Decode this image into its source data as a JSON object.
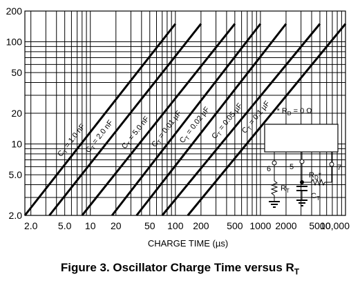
{
  "chart_data": {
    "type": "line",
    "x_scale": "log",
    "y_scale": "log",
    "xlim": [
      1.7,
      10000
    ],
    "ylim": [
      2.0,
      200
    ],
    "x_ticks": [
      "2.0",
      "5.0",
      "10",
      "20",
      "50",
      "100",
      "200",
      "500",
      "1000",
      "2000",
      "5000",
      "10,000"
    ],
    "x_tick_values": [
      2,
      5,
      10,
      20,
      50,
      100,
      200,
      500,
      1000,
      2000,
      5000,
      10000
    ],
    "y_ticks": [
      "2.0",
      "5.0",
      "10",
      "20",
      "50",
      "100",
      "200"
    ],
    "y_tick_values": [
      2,
      5,
      10,
      20,
      50,
      100,
      200
    ],
    "grid": true,
    "xlabel": "CHARGE TIME (µs)",
    "ylabel": "",
    "title": "Figure 3. Oscillator Charge Time versus R",
    "title_sub": "T",
    "series": [
      {
        "name": "CT = 1.0 nF",
        "sub_name": "T",
        "label_pre": "C",
        "label_post": " = 1.0 nF",
        "x": [
          1.7,
          100
        ],
        "y": [
          2.0,
          150
        ]
      },
      {
        "name": "CT = 2.0 nF",
        "sub_name": "T",
        "label_pre": "C",
        "label_post": " = 2.0 nF",
        "x": [
          3.3,
          200
        ],
        "y": [
          2.0,
          150
        ]
      },
      {
        "name": "CT = 5.0 nF",
        "sub_name": "T",
        "label_pre": "C",
        "label_post": " = 5.0 nF",
        "x": [
          8,
          500
        ],
        "y": [
          2.0,
          150
        ]
      },
      {
        "name": "CT = 0.01 µF",
        "sub_name": "T",
        "label_pre": "C",
        "label_post": " = 0.01 µF",
        "x": [
          18,
          1000
        ],
        "y": [
          2.0,
          150
        ]
      },
      {
        "name": "CT = 0.02 µF",
        "sub_name": "T",
        "label_pre": "C",
        "label_post": " = 0.02 µF",
        "x": [
          35,
          2000
        ],
        "y": [
          2.0,
          150
        ]
      },
      {
        "name": "CT = 0.05 µF",
        "sub_name": "T",
        "label_pre": "C",
        "label_post": " = 0.05 µF",
        "x": [
          70,
          5000
        ],
        "y": [
          2.0,
          150
        ]
      },
      {
        "name": "CT = 0.1 µF",
        "sub_name": "T",
        "label_pre": "C",
        "label_post": " = 0.1 µF",
        "x": [
          140,
          10000
        ],
        "y": [
          2.0,
          150
        ]
      }
    ]
  },
  "schematic": {
    "note_pre": "* R",
    "note_sub": "D",
    "note_post": " = 0 Ω",
    "pin_6": "6",
    "pin_5": "5",
    "pin_7": "7",
    "rt_pre": "R",
    "rt_sub": "T",
    "rd_pre": "R",
    "rd_sub": "D",
    "rd_star": "*",
    "ct_pre": "C",
    "ct_sub": "T"
  },
  "colors": {
    "line": "#000000",
    "grid": "#000000",
    "background": "#ffffff"
  }
}
